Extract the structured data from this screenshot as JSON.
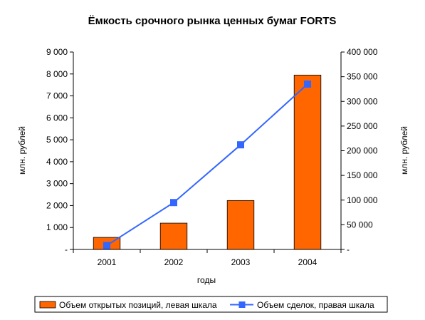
{
  "chart_data": {
    "type": "bar+line",
    "title": "Ёмкость срочного рынка ценных бумаг FORTS",
    "xlabel": "годы",
    "ylabel_left": "млн. рублей",
    "ylabel_right": "млн. рублей",
    "categories": [
      "2001",
      "2002",
      "2003",
      "2004"
    ],
    "ylim_left": [
      0,
      9000
    ],
    "ylim_right": [
      0,
      400000
    ],
    "left_ticks": [
      {
        "value": 0,
        "label": "-"
      },
      {
        "value": 1000,
        "label": "1 000"
      },
      {
        "value": 2000,
        "label": "2 000"
      },
      {
        "value": 3000,
        "label": "3 000"
      },
      {
        "value": 4000,
        "label": "4 000"
      },
      {
        "value": 5000,
        "label": "5 000"
      },
      {
        "value": 6000,
        "label": "6 000"
      },
      {
        "value": 7000,
        "label": "7 000"
      },
      {
        "value": 8000,
        "label": "8 000"
      },
      {
        "value": 9000,
        "label": "9 000"
      }
    ],
    "right_ticks": [
      {
        "value": 0,
        "label": "-"
      },
      {
        "value": 50000,
        "label": "50 000"
      },
      {
        "value": 100000,
        "label": "100 000"
      },
      {
        "value": 150000,
        "label": "150 000"
      },
      {
        "value": 200000,
        "label": "200 000"
      },
      {
        "value": 250000,
        "label": "250 000"
      },
      {
        "value": 300000,
        "label": "300 000"
      },
      {
        "value": 350000,
        "label": "350 000"
      },
      {
        "value": 400000,
        "label": "400 000"
      }
    ],
    "series": [
      {
        "name": "Объем открытых позиций, левая шкала",
        "type": "bar",
        "axis": "left",
        "color": "#FF6600",
        "values": [
          550,
          1200,
          2230,
          7950
        ]
      },
      {
        "name": "Объем сделок, правая шкала",
        "type": "line",
        "axis": "right",
        "color": "#3366FF",
        "values": [
          8000,
          95000,
          212000,
          335000
        ]
      }
    ],
    "grid": false,
    "legend_position": "bottom"
  }
}
